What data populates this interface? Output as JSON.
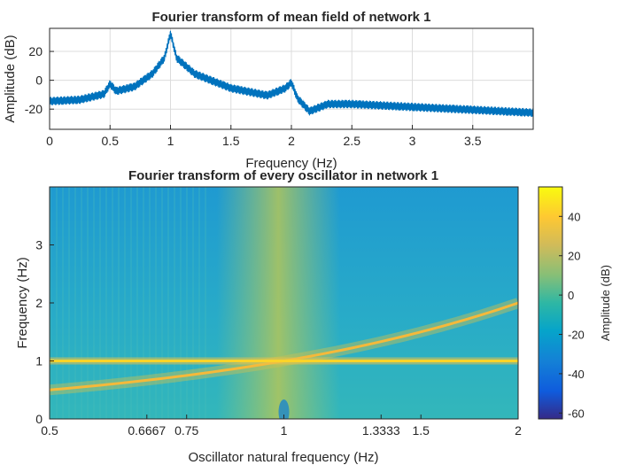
{
  "chart_data": [
    {
      "type": "line",
      "title": "Fourier transform of mean field of network 1",
      "xlabel": "Frequency (Hz)",
      "ylabel": "Amplitude (dB)",
      "xlim": [
        0,
        4
      ],
      "ylim": [
        -34,
        36
      ],
      "grid": true,
      "x_ticks": [
        0,
        0.5,
        1,
        1.5,
        2,
        2.5,
        3,
        3.5
      ],
      "x_tick_labels": [
        "0",
        "0.5",
        "1",
        "1.5",
        "2",
        "2.5",
        "3",
        "3.5"
      ],
      "y_ticks": [
        20,
        0,
        -20
      ],
      "y_tick_labels": [
        "20",
        "0",
        "-20"
      ],
      "line_color": "#0072bd",
      "series": [
        {
          "x": [
            0,
            0.25,
            0.45,
            0.5,
            0.55,
            0.7,
            0.85,
            0.95,
            1.0,
            1.05,
            1.2,
            1.5,
            1.8,
            1.95,
            2.0,
            2.05,
            2.15,
            2.3,
            2.5,
            3.0,
            3.5,
            4.0
          ],
          "values": [
            -13,
            -12,
            -8,
            -1,
            -6,
            -3,
            6,
            17,
            34,
            17,
            6,
            -4,
            -9,
            -4,
            0,
            -11,
            -20,
            -15,
            -15,
            -17,
            -19,
            -21
          ],
          "ripple_amplitude_db": 6
        }
      ]
    },
    {
      "type": "heatmap",
      "title": "Fourier transform of every oscillator in network 1",
      "xlabel": "Oscillator natural frequency (Hz)",
      "ylabel": "Frequency (Hz)",
      "x_scale": "log",
      "xlim": [
        0.5,
        2
      ],
      "ylim": [
        0,
        4
      ],
      "x_ticks": [
        0.5,
        0.6667,
        0.75,
        1,
        1.3333,
        1.5,
        2
      ],
      "x_tick_labels": [
        "0.5",
        "0.6667",
        "0.75",
        "1",
        "1.3333",
        "1.5",
        "2"
      ],
      "y_ticks": [
        0,
        1,
        2,
        3
      ],
      "y_tick_labels": [
        "0",
        "1",
        "2",
        "3"
      ],
      "colorbar": {
        "label": "Amplitude (dB)",
        "range": [
          -63,
          55
        ],
        "ticks": [
          40,
          20,
          0,
          -20,
          -40,
          -60
        ],
        "tick_labels": [
          "40",
          "20",
          "0",
          "-20",
          "-40",
          "-60"
        ],
        "colormap": "parula"
      },
      "features": {
        "horizontal_line_frequency_hz": 1,
        "diagonal_line": "frequency equals oscillator natural frequency",
        "peak_db": 50,
        "background_db": -15
      }
    }
  ]
}
